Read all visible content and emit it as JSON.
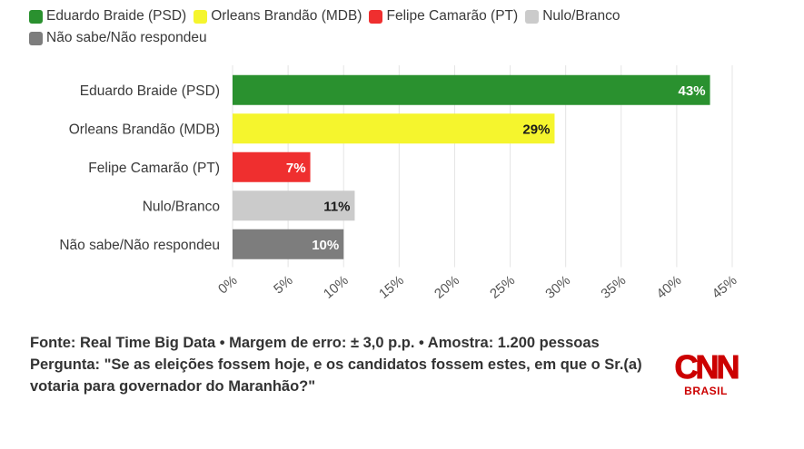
{
  "chart_data": {
    "type": "bar",
    "orientation": "horizontal",
    "categories": [
      "Eduardo Braide (PSD)",
      "Orleans Brandão (MDB)",
      "Felipe Camarão (PT)",
      "Nulo/Branco",
      "Não sabe/Não respondeu"
    ],
    "values": [
      43,
      29,
      7,
      11,
      10
    ],
    "value_labels": [
      "43%",
      "29%",
      "7%",
      "11%",
      "10%"
    ],
    "colors": [
      "#2a912f",
      "#f5f52d",
      "#ef2f2f",
      "#cbcbcb",
      "#7d7d7d"
    ],
    "label_colors": [
      "#ffffff",
      "#1a1a1a",
      "#ffffff",
      "#1a1a1a",
      "#ffffff"
    ],
    "xlim": [
      0,
      45
    ],
    "ticks": [
      0,
      5,
      10,
      15,
      20,
      25,
      30,
      35,
      40,
      45
    ],
    "tick_labels": [
      "0%",
      "5%",
      "10%",
      "15%",
      "20%",
      "25%",
      "30%",
      "35%",
      "40%",
      "45%"
    ],
    "legend": [
      {
        "label": "Eduardo Braide (PSD)",
        "color": "#2a912f"
      },
      {
        "label": "Orleans Brandão (MDB)",
        "color": "#f5f52d"
      },
      {
        "label": "Felipe Camarão (PT)",
        "color": "#ef2f2f"
      },
      {
        "label": "Nulo/Branco",
        "color": "#cbcbcb"
      },
      {
        "label": "Não sabe/Não respondeu",
        "color": "#7d7d7d"
      }
    ],
    "legend_position": "top-left",
    "grid": true
  },
  "footer": {
    "source_line": "Fonte: Real Time Big Data • Margem de erro: ± 3,0 p.p. • Amostra: 1.200 pessoas",
    "question_line": "Pergunta: \"Se as eleições fossem hoje, e os candidatos fossem estes, em que o Sr.(a) votaria para governador do Maranhão?\""
  },
  "logo": {
    "mark": "CNN",
    "sub": "BRASIL",
    "color": "#cc0000"
  }
}
